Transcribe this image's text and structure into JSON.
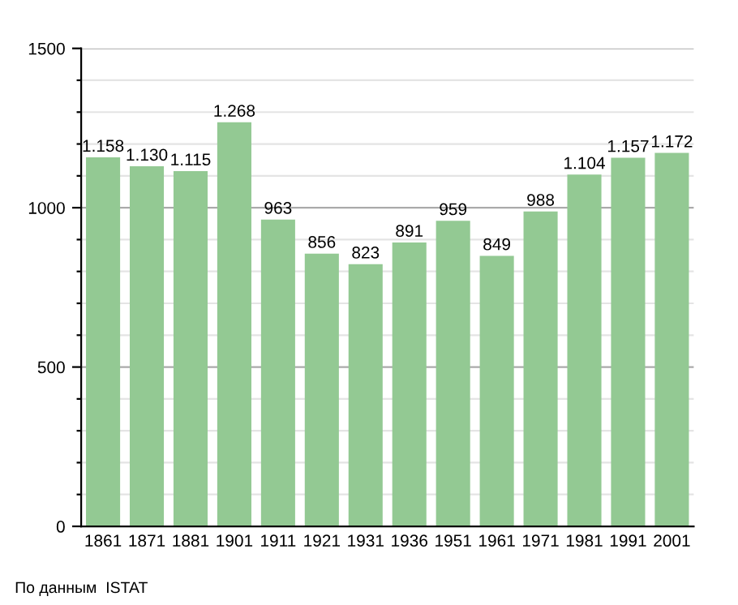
{
  "chart_data": {
    "type": "bar",
    "categories": [
      "1861",
      "1871",
      "1881",
      "1901",
      "1911",
      "1921",
      "1931",
      "1936",
      "1951",
      "1961",
      "1971",
      "1981",
      "1991",
      "2001"
    ],
    "values": [
      1158,
      1130,
      1115,
      1268,
      963,
      856,
      823,
      891,
      959,
      849,
      988,
      1104,
      1157,
      1172
    ],
    "value_labels": [
      "1.158",
      "1.130",
      "1.115",
      "1.268",
      "963",
      "856",
      "823",
      "891",
      "959",
      "849",
      "988",
      "1.104",
      "1.157",
      "1.172"
    ],
    "color": "#93c993",
    "ylim": [
      0,
      1500
    ],
    "yticks": [
      0,
      {
        "value": 100,
        "label": null
      },
      {
        "value": 200,
        "label": null
      },
      {
        "value": 300,
        "label": null
      },
      {
        "value": 400,
        "label": null
      },
      500,
      {
        "value": 600,
        "label": null
      },
      {
        "value": 700,
        "label": null
      },
      {
        "value": 800,
        "label": null
      },
      {
        "value": 900,
        "label": null
      },
      1000,
      {
        "value": 1100,
        "label": null
      },
      {
        "value": 1200,
        "label": null
      },
      {
        "value": 1300,
        "label": null
      },
      {
        "value": 1400,
        "label": null
      },
      1500
    ],
    "grid": "y",
    "annotations": [
      "По данным  ISTAT"
    ]
  }
}
